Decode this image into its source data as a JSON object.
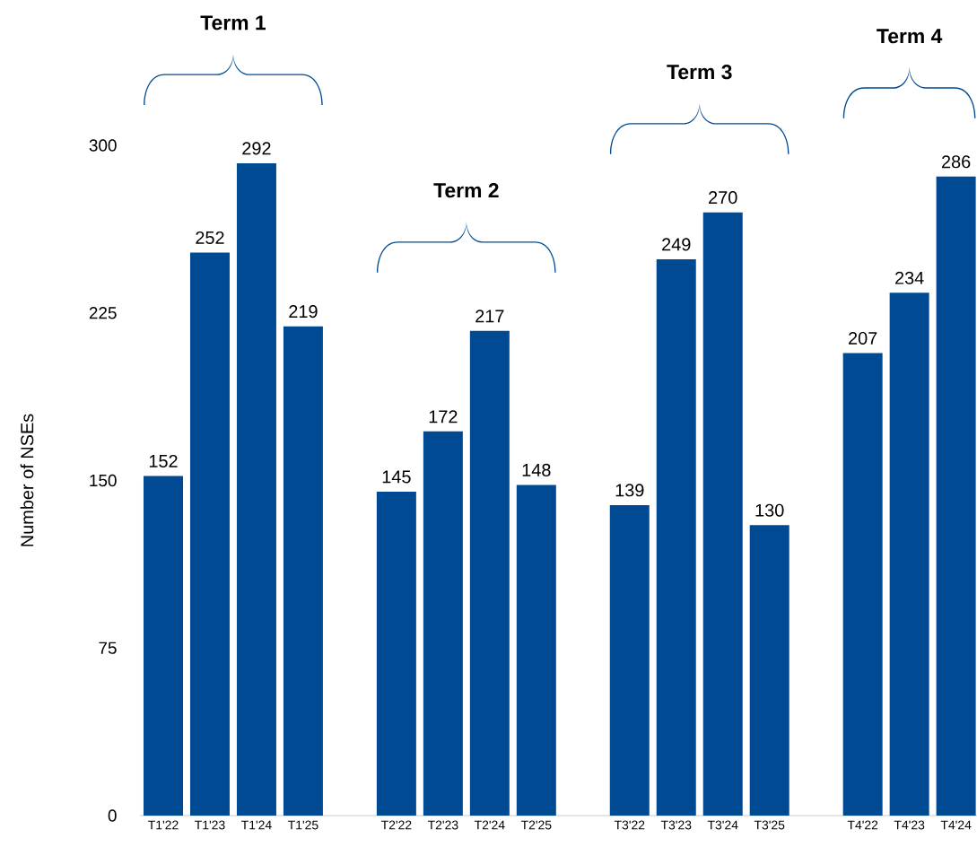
{
  "chart_data": {
    "type": "bar",
    "ylabel": "Number of NSEs",
    "categories": [
      "T1'22",
      "T1'23",
      "T1'24",
      "T1'25",
      null,
      "T2'22",
      "T2'23",
      "T2'24",
      "T2'25",
      null,
      "T3'22",
      "T3'23",
      "T3'24",
      "T3'25",
      null,
      "T4'22",
      "T4'23",
      "T4'24"
    ],
    "values": [
      152,
      252,
      292,
      219,
      null,
      145,
      172,
      217,
      148,
      null,
      139,
      249,
      270,
      130,
      null,
      207,
      234,
      286
    ],
    "value_labels": [
      "152",
      "252",
      "292",
      "219",
      null,
      "145",
      "172",
      "217",
      "148",
      null,
      "139",
      "249",
      "270",
      "130",
      null,
      "207",
      "234",
      "286"
    ],
    "color": "#004a93",
    "ylim": [
      0,
      300
    ],
    "yticks": [
      0,
      75,
      150,
      225,
      300
    ],
    "annotations": [
      "Term 1",
      "Term 2",
      "Term 3",
      "Term 4"
    ]
  }
}
